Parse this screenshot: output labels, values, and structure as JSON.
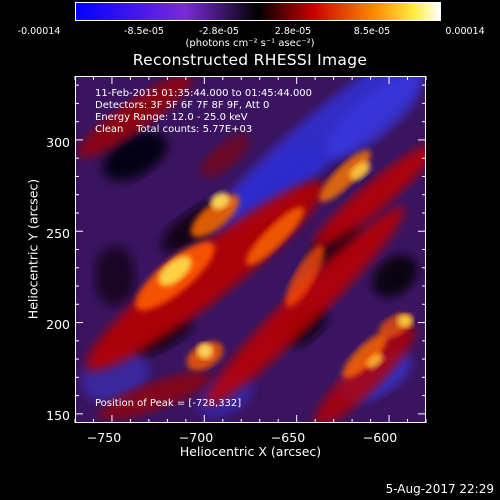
{
  "colorbar": {
    "ticks": [
      "-0.00014",
      "-8.5e-05",
      "-2.8e-05",
      "2.8e-05",
      "8.5e-05",
      "0.00014"
    ],
    "units": "(photons cm⁻² s⁻¹ asec⁻²)",
    "range": [
      -0.00014,
      0.00014
    ]
  },
  "chart_data": {
    "type": "heatmap",
    "title": "Reconstructed RHESSI Image",
    "xlabel": "Heliocentric X (arcsec)",
    "ylabel": "Heliocentric Y (arcsec)",
    "xlim": [
      -770,
      -580
    ],
    "ylim": [
      145,
      335
    ],
    "x_ticks": [
      -750,
      -700,
      -650,
      -600
    ],
    "y_ticks": [
      150,
      200,
      250,
      300
    ],
    "x_tick_labels": [
      "−750",
      "−700",
      "−650",
      "−600"
    ],
    "y_tick_labels": [
      "150",
      "200",
      "250",
      "300"
    ],
    "colormap": "blue-purple-black-red-yellow-white",
    "peak": [
      -728,
      332
    ]
  },
  "info": {
    "line1": "11-Feb-2015 01:35:44.000 to 01:45:44.000",
    "line2": "Detectors: 3F 5F 6F 7F 8F 9F, Att 0",
    "line3": "Energy Range: 12.0 - 25.0 keV",
    "line4": "Clean    Total counts: 5.77E+03",
    "peak": "Position of Peak = [-728,332]"
  },
  "timestamp": "5-Aug-2017 22:29"
}
